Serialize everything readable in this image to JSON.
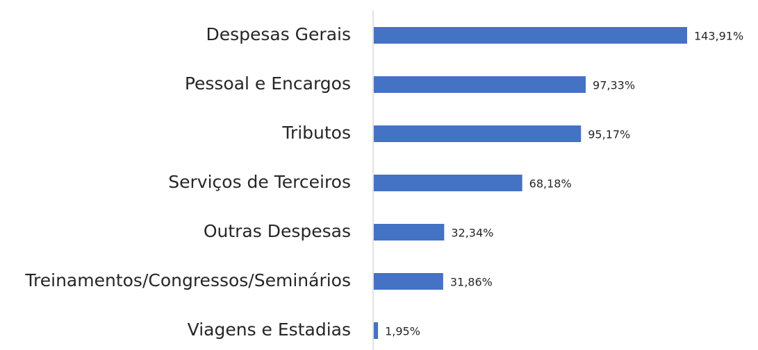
{
  "chart_data": {
    "type": "barh",
    "categories": [
      "Despesas Gerais",
      "Pessoal e Encargos",
      "Tributos",
      "Serviços de Terceiros",
      "Outras Despesas",
      "Treinamentos/Congressos/Seminários",
      "Viagens e Estadias"
    ],
    "values": [
      143.91,
      97.33,
      95.17,
      68.18,
      32.34,
      31.86,
      1.95
    ],
    "value_labels": [
      "143,91%",
      "97,33%",
      "95,17%",
      "68,18%",
      "32,34%",
      "31,86%",
      "1,95%"
    ],
    "color": "#4472c4"
  }
}
